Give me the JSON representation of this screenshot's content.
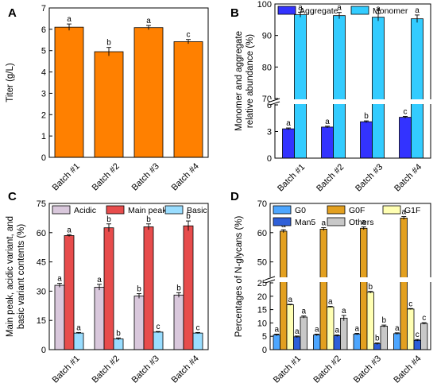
{
  "chart_data": [
    {
      "panel": "A",
      "type": "bar",
      "categories": [
        "Batch #1",
        "Batch #2",
        "Batch #3",
        "Batch #4"
      ],
      "ylabel": "Titer (g/L)",
      "ylim": [
        0,
        7
      ],
      "yticks": [
        0,
        1,
        2,
        3,
        4,
        5,
        6,
        7
      ],
      "series": [
        {
          "values": [
            6.1,
            4.95,
            6.08,
            5.42
          ],
          "errors": [
            0.15,
            0.2,
            0.1,
            0.1
          ],
          "letters": [
            "a",
            "b",
            "a",
            "c"
          ],
          "color": "#FF8000"
        }
      ]
    },
    {
      "panel": "B",
      "type": "bar",
      "categories": [
        "Batch #1",
        "Batch #2",
        "Batch #3",
        "Batch #4"
      ],
      "ylabel": "Monomer and aggregate relative abundance (%)",
      "ylabel_lines": [
        "Monomer and aggregate",
        "relative abundance (%)"
      ],
      "axis_break": {
        "lower": [
          0,
          6
        ],
        "upper": [
          70,
          100
        ]
      },
      "yticks": [
        0,
        3,
        6,
        70,
        80,
        90,
        100
      ],
      "legend": {
        "placement": "top"
      },
      "series": [
        {
          "name": "Aggregate",
          "values": [
            3.3,
            3.5,
            4.1,
            4.6
          ],
          "errors": [
            0.1,
            0.1,
            0.1,
            0.1
          ],
          "letters": [
            "a",
            "a",
            "b",
            "c"
          ],
          "color": "#3333FF"
        },
        {
          "name": "Monomer",
          "values": [
            96.6,
            96.3,
            95.8,
            95.3
          ],
          "errors": [
            0.8,
            1.0,
            1.2,
            1.2
          ],
          "letters": [
            "a",
            "a",
            "a",
            "a"
          ],
          "color": "#33CCFF"
        }
      ]
    },
    {
      "panel": "C",
      "type": "bar",
      "categories": [
        "Batch #1",
        "Batch #2",
        "Batch #3",
        "Batch #4"
      ],
      "ylabel": "Main peak, acidic variant, and basic variant contents (%)",
      "ylabel_lines": [
        "Main peak, acidic variant, and",
        "basic variant contents (%)"
      ],
      "ylim": [
        0,
        75
      ],
      "yticks": [
        0,
        15,
        30,
        45,
        60,
        75
      ],
      "legend": {
        "placement": "top"
      },
      "series": [
        {
          "name": "Acidic",
          "values": [
            33,
            32,
            27.5,
            28
          ],
          "errors": [
            1,
            1.5,
            1.2,
            1.2
          ],
          "letters": [
            "a",
            "a",
            "b",
            "b"
          ],
          "color": "#D9C8DC"
        },
        {
          "name": "Main peak",
          "values": [
            58.5,
            62.5,
            63,
            63.5
          ],
          "errors": [
            0.5,
            2,
            1.5,
            2.5
          ],
          "letters": [
            "a",
            "b",
            "b",
            "b"
          ],
          "color": "#E74C4C"
        },
        {
          "name": "Basic",
          "values": [
            8.5,
            5.5,
            9,
            8.5
          ],
          "errors": [
            0.3,
            0.5,
            0.3,
            0.3
          ],
          "letters": [
            "a",
            "b",
            "c",
            "c"
          ],
          "color": "#99DDFF"
        }
      ]
    },
    {
      "panel": "D",
      "type": "bar",
      "categories": [
        "Batch #1",
        "Batch #2",
        "Batch #3",
        "Batch #4"
      ],
      "ylabel": "Percentages of N-glycans (%)",
      "axis_break": {
        "lower": [
          0,
          25
        ],
        "upper": [
          45,
          70
        ]
      },
      "yticks": [
        0,
        5,
        10,
        15,
        20,
        25,
        50,
        60,
        70
      ],
      "legend": {
        "placement": "top"
      },
      "series": [
        {
          "name": "G0",
          "values": [
            5.5,
            5.5,
            5.8,
            6.0
          ],
          "errors": [
            0.3,
            0.3,
            0.3,
            0.3
          ],
          "letters": [
            "a",
            "a",
            "a",
            "a"
          ],
          "color": "#4DA6FF"
        },
        {
          "name": "G0F",
          "values": [
            60.5,
            61.2,
            61.5,
            65.0
          ],
          "errors": [
            0.5,
            0.5,
            0.5,
            0.5
          ],
          "letters": [
            "a",
            "a",
            "a",
            "a"
          ],
          "color": "#E3A020"
        },
        {
          "name": "G1F",
          "values": [
            16.8,
            16.0,
            21.5,
            15.2
          ],
          "errors": [
            0.2,
            0.2,
            0.3,
            0.2
          ],
          "letters": [
            "a",
            "a",
            "b",
            "c"
          ],
          "color": "#FFFFB3"
        },
        {
          "name": "Man5",
          "values": [
            4.8,
            5.2,
            2.2,
            3.5
          ],
          "errors": [
            0.3,
            0.3,
            0.3,
            0.3
          ],
          "letters": [
            "a",
            "a",
            "b",
            "c"
          ],
          "color": "#2E5FD8"
        },
        {
          "name": "Others",
          "values": [
            12.2,
            11.8,
            8.8,
            9.8
          ],
          "errors": [
            0.4,
            1.0,
            0.4,
            0.3
          ],
          "letters": [
            "a",
            "a",
            "b",
            "c"
          ],
          "color": "#C8C8C8"
        }
      ]
    }
  ]
}
